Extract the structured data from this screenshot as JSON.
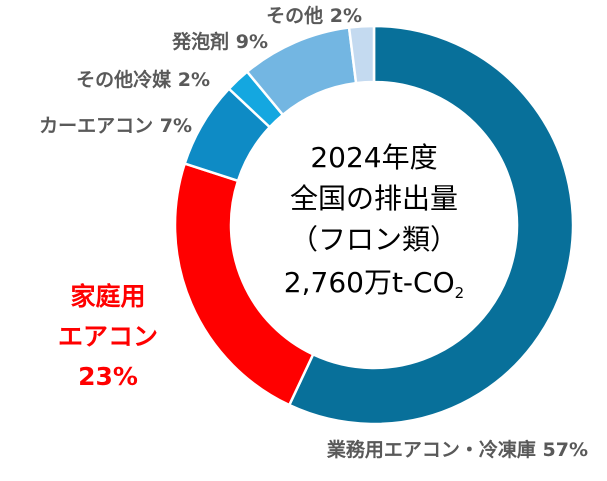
{
  "chart_data": {
    "type": "pie",
    "variant": "donut",
    "center_text": {
      "line1": "2024年度",
      "line2": "全国の排出量",
      "line3": "（フロン類）",
      "line4_main": "2,760万t-CO",
      "line4_sub": "2"
    },
    "slices": [
      {
        "label": "業務用エアコン・冷凍庫",
        "value": 57,
        "value_text": "57%",
        "color": "#08709a"
      },
      {
        "label_lines": [
          "家庭用",
          "エアコン"
        ],
        "value": 23,
        "value_text": "23%",
        "color": "#ff0000"
      },
      {
        "label": "カーエアコン",
        "value": 7,
        "value_text": "7%",
        "color": "#0e8bc5"
      },
      {
        "label": "その他冷媒",
        "value": 2,
        "value_text": "2%",
        "color": "#14a7e0"
      },
      {
        "label": "発泡剤",
        "value": 9,
        "value_text": "9%",
        "color": "#73b6e2"
      },
      {
        "label": "その他",
        "value": 2,
        "value_text": "2%",
        "color": "#c4daf0"
      }
    ],
    "legend": "none",
    "grid": false
  }
}
